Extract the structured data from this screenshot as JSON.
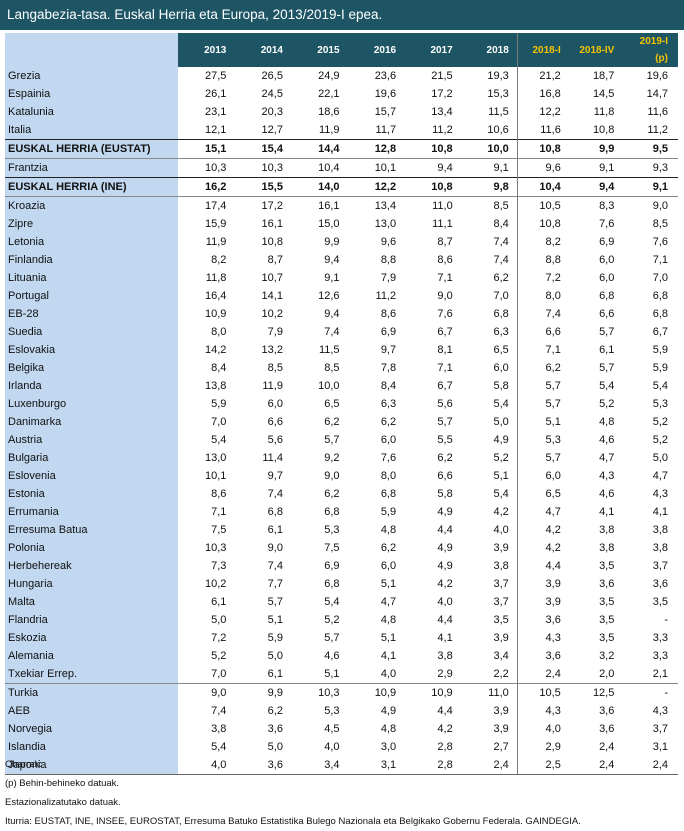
{
  "title": "Langabezia-tasa. Euskal Herria eta Europa, 2013/2019-I epea.",
  "columns": [
    "2013",
    "2014",
    "2015",
    "2016",
    "2017",
    "2018",
    "2018-I",
    "2018-IV",
    "2019-I (p)"
  ],
  "rows": [
    {
      "name": "Grezia",
      "values": [
        "27,5",
        "26,5",
        "24,9",
        "23,6",
        "21,5",
        "19,3",
        "21,2",
        "18,7",
        "19,6"
      ]
    },
    {
      "name": "Espainia",
      "values": [
        "26,1",
        "24,5",
        "22,1",
        "19,6",
        "17,2",
        "15,3",
        "16,8",
        "14,5",
        "14,7"
      ]
    },
    {
      "name": "Katalunia",
      "values": [
        "23,1",
        "20,3",
        "18,6",
        "15,7",
        "13,4",
        "11,5",
        "12,2",
        "11,8",
        "11,6"
      ]
    },
    {
      "name": "Italia",
      "values": [
        "12,1",
        "12,7",
        "11,9",
        "11,7",
        "11,2",
        "10,6",
        "11,6",
        "10,8",
        "11,2"
      ]
    },
    {
      "name": "EUSKAL HERRIA (EUSTAT)",
      "values": [
        "15,1",
        "15,4",
        "14,4",
        "12,8",
        "10,8",
        "10,0",
        "10,8",
        "9,9",
        "9,5"
      ]
    },
    {
      "name": "Frantzia",
      "values": [
        "10,3",
        "10,3",
        "10,4",
        "10,1",
        "9,4",
        "9,1",
        "9,6",
        "9,1",
        "9,3"
      ]
    },
    {
      "name": "EUSKAL HERRIA (INE)",
      "values": [
        "16,2",
        "15,5",
        "14,0",
        "12,2",
        "10,8",
        "9,8",
        "10,4",
        "9,4",
        "9,1"
      ]
    },
    {
      "name": "Kroazia",
      "values": [
        "17,4",
        "17,2",
        "16,1",
        "13,4",
        "11,0",
        "8,5",
        "10,5",
        "8,3",
        "9,0"
      ]
    },
    {
      "name": "Zipre",
      "values": [
        "15,9",
        "16,1",
        "15,0",
        "13,0",
        "11,1",
        "8,4",
        "10,8",
        "7,6",
        "8,5"
      ]
    },
    {
      "name": "Letonia",
      "values": [
        "11,9",
        "10,8",
        "9,9",
        "9,6",
        "8,7",
        "7,4",
        "8,2",
        "6,9",
        "7,6"
      ]
    },
    {
      "name": "Finlandia",
      "values": [
        "8,2",
        "8,7",
        "9,4",
        "8,8",
        "8,6",
        "7,4",
        "8,8",
        "6,0",
        "7,1"
      ]
    },
    {
      "name": "Lituania",
      "values": [
        "11,8",
        "10,7",
        "9,1",
        "7,9",
        "7,1",
        "6,2",
        "7,2",
        "6,0",
        "7,0"
      ]
    },
    {
      "name": "Portugal",
      "values": [
        "16,4",
        "14,1",
        "12,6",
        "11,2",
        "9,0",
        "7,0",
        "8,0",
        "6,8",
        "6,8"
      ]
    },
    {
      "name": "EB-28",
      "values": [
        "10,9",
        "10,2",
        "9,4",
        "8,6",
        "7,6",
        "6,8",
        "7,4",
        "6,6",
        "6,8"
      ]
    },
    {
      "name": "Suedia",
      "values": [
        "8,0",
        "7,9",
        "7,4",
        "6,9",
        "6,7",
        "6,3",
        "6,6",
        "5,7",
        "6,7"
      ]
    },
    {
      "name": "Eslovakia",
      "values": [
        "14,2",
        "13,2",
        "11,5",
        "9,7",
        "8,1",
        "6,5",
        "7,1",
        "6,1",
        "5,9"
      ]
    },
    {
      "name": "Belgika",
      "values": [
        "8,4",
        "8,5",
        "8,5",
        "7,8",
        "7,1",
        "6,0",
        "6,2",
        "5,7",
        "5,9"
      ]
    },
    {
      "name": "Irlanda",
      "values": [
        "13,8",
        "11,9",
        "10,0",
        "8,4",
        "6,7",
        "5,8",
        "5,7",
        "5,4",
        "5,4"
      ]
    },
    {
      "name": "Luxenburgo",
      "values": [
        "5,9",
        "6,0",
        "6,5",
        "6,3",
        "5,6",
        "5,4",
        "5,7",
        "5,2",
        "5,3"
      ]
    },
    {
      "name": "Danimarka",
      "values": [
        "7,0",
        "6,6",
        "6,2",
        "6,2",
        "5,7",
        "5,0",
        "5,1",
        "4,8",
        "5,2"
      ]
    },
    {
      "name": "Austria",
      "values": [
        "5,4",
        "5,6",
        "5,7",
        "6,0",
        "5,5",
        "4,9",
        "5,3",
        "4,6",
        "5,2"
      ]
    },
    {
      "name": "Bulgaria",
      "values": [
        "13,0",
        "11,4",
        "9,2",
        "7,6",
        "6,2",
        "5,2",
        "5,7",
        "4,7",
        "5,0"
      ]
    },
    {
      "name": "Eslovenia",
      "values": [
        "10,1",
        "9,7",
        "9,0",
        "8,0",
        "6,6",
        "5,1",
        "6,0",
        "4,3",
        "4,7"
      ]
    },
    {
      "name": "Estonia",
      "values": [
        "8,6",
        "7,4",
        "6,2",
        "6,8",
        "5,8",
        "5,4",
        "6,5",
        "4,6",
        "4,3"
      ]
    },
    {
      "name": "Errumania",
      "values": [
        "7,1",
        "6,8",
        "6,8",
        "5,9",
        "4,9",
        "4,2",
        "4,7",
        "4,1",
        "4,1"
      ]
    },
    {
      "name": "Erresuma Batua",
      "values": [
        "7,5",
        "6,1",
        "5,3",
        "4,8",
        "4,4",
        "4,0",
        "4,2",
        "3,8",
        "3,8"
      ]
    },
    {
      "name": "Polonia",
      "values": [
        "10,3",
        "9,0",
        "7,5",
        "6,2",
        "4,9",
        "3,9",
        "4,2",
        "3,8",
        "3,8"
      ]
    },
    {
      "name": "Herbehereak",
      "values": [
        "7,3",
        "7,4",
        "6,9",
        "6,0",
        "4,9",
        "3,8",
        "4,4",
        "3,5",
        "3,7"
      ]
    },
    {
      "name": "Hungaria",
      "values": [
        "10,2",
        "7,7",
        "6,8",
        "5,1",
        "4,2",
        "3,7",
        "3,9",
        "3,6",
        "3,6"
      ]
    },
    {
      "name": "Malta",
      "values": [
        "6,1",
        "5,7",
        "5,4",
        "4,7",
        "4,0",
        "3,7",
        "3,9",
        "3,5",
        "3,5"
      ]
    },
    {
      "name": "Flandria",
      "values": [
        "5,0",
        "5,1",
        "5,2",
        "4,8",
        "4,4",
        "3,5",
        "3,6",
        "3,5",
        "-"
      ]
    },
    {
      "name": "Eskozia",
      "values": [
        "7,2",
        "5,9",
        "5,7",
        "5,1",
        "4,1",
        "3,9",
        "4,3",
        "3,5",
        "3,3"
      ]
    },
    {
      "name": "Alemania",
      "values": [
        "5,2",
        "5,0",
        "4,6",
        "4,1",
        "3,8",
        "3,4",
        "3,6",
        "3,2",
        "3,3"
      ]
    },
    {
      "name": "Txekiar Errep.",
      "values": [
        "7,0",
        "6,1",
        "5,1",
        "4,0",
        "2,9",
        "2,2",
        "2,4",
        "2,0",
        "2,1"
      ]
    },
    {
      "name": "Turkia",
      "values": [
        "9,0",
        "9,9",
        "10,3",
        "10,9",
        "10,9",
        "11,0",
        "10,5",
        "12,5",
        "-"
      ]
    },
    {
      "name": "AEB",
      "values": [
        "7,4",
        "6,2",
        "5,3",
        "4,9",
        "4,4",
        "3,9",
        "4,3",
        "3,6",
        "4,3"
      ]
    },
    {
      "name": "Norvegia",
      "values": [
        "3,8",
        "3,6",
        "4,5",
        "4,8",
        "4,2",
        "3,9",
        "4,0",
        "3,6",
        "3,7"
      ]
    },
    {
      "name": "Islandia",
      "values": [
        "5,4",
        "5,0",
        "4,0",
        "3,0",
        "2,8",
        "2,7",
        "2,9",
        "2,4",
        "3,1"
      ]
    },
    {
      "name": "Japonia",
      "values": [
        "4,0",
        "3,6",
        "3,4",
        "3,1",
        "2,8",
        "2,4",
        "2,5",
        "2,4",
        "2,4"
      ]
    }
  ],
  "notes": {
    "heading": "Oharrak:",
    "provisional": "(p) Behin-behineko datuak.",
    "seasonal": "Estazionalizatutako datuak.",
    "source": "Iturria: EUSTAT, INE, INSEE, EUROSTAT, Erresuma Batuko Estatistika Bulego Nazionala eta Belgikako Gobernu Federala. GAINDEGIA."
  },
  "colors": {
    "header_bg": "#1d5565",
    "quarter_text": "#f5c400",
    "name_bg": "#c1d8f0"
  }
}
